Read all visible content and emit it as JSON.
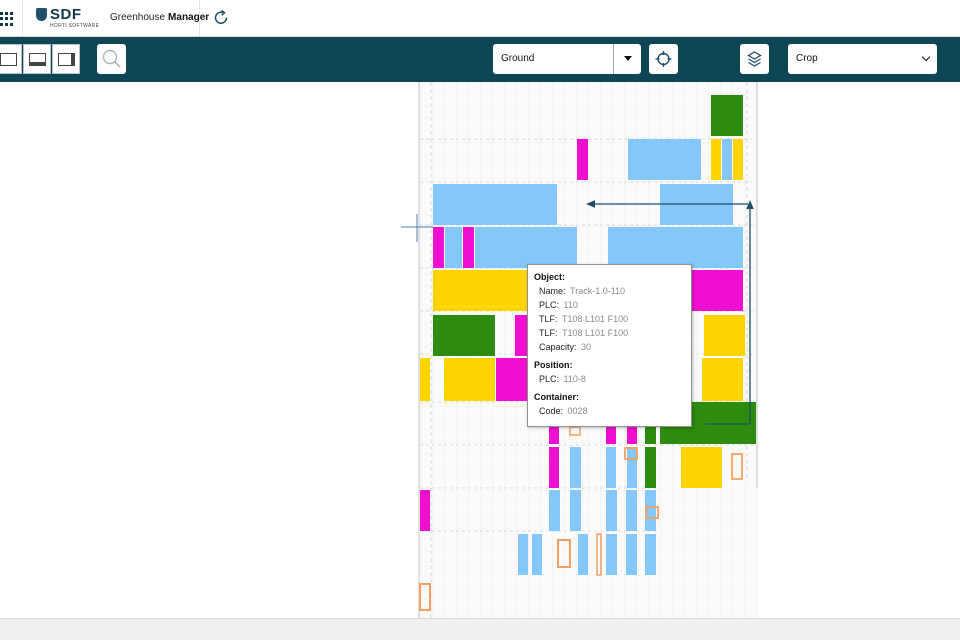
{
  "header": {
    "logo_text": "SDF",
    "logo_sub": "HORTI SOFTWARE",
    "app_title_part1": "Greenhouse",
    "app_title_part2": "Manager",
    "icons": [
      "apps-grid-icon",
      "refresh-icon"
    ]
  },
  "toolbar": {
    "view_buttons": [
      "layout-single-icon",
      "layout-bottom-panel-icon",
      "layout-side-panel-icon"
    ],
    "search_icon": "magnifier-icon",
    "floor_select": {
      "value": "Ground"
    },
    "locate_icon": "crosshair-icon",
    "layers_icon": "layers-icon",
    "mode_select": {
      "value": "Crop"
    }
  },
  "colors": {
    "toolbar_bg": "#0f4656",
    "green": "#2d8c0e",
    "magenta": "#f00fd0",
    "light_blue": "#83c7fb",
    "yellow": "#fed400",
    "orange": "#f4a060",
    "arrow": "#1f4f6b"
  },
  "tooltip": {
    "object_header": "Object:",
    "name_label": "Name:",
    "name_value": "Track-1.0-110",
    "plc_label": "PLC:",
    "plc_value": "110",
    "tlf1_label": "TLF:",
    "tlf1_value": "T108 L101 F100",
    "tlf2_label": "TLF:",
    "tlf2_value": "T108 L101 F100",
    "capacity_label": "Capacity:",
    "capacity_value": "30",
    "position_header": "Position:",
    "pos_plc_label": "PLC:",
    "pos_plc_value": "110-8",
    "container_header": "Container:",
    "code_label": "Code:",
    "code_value": "0028"
  }
}
